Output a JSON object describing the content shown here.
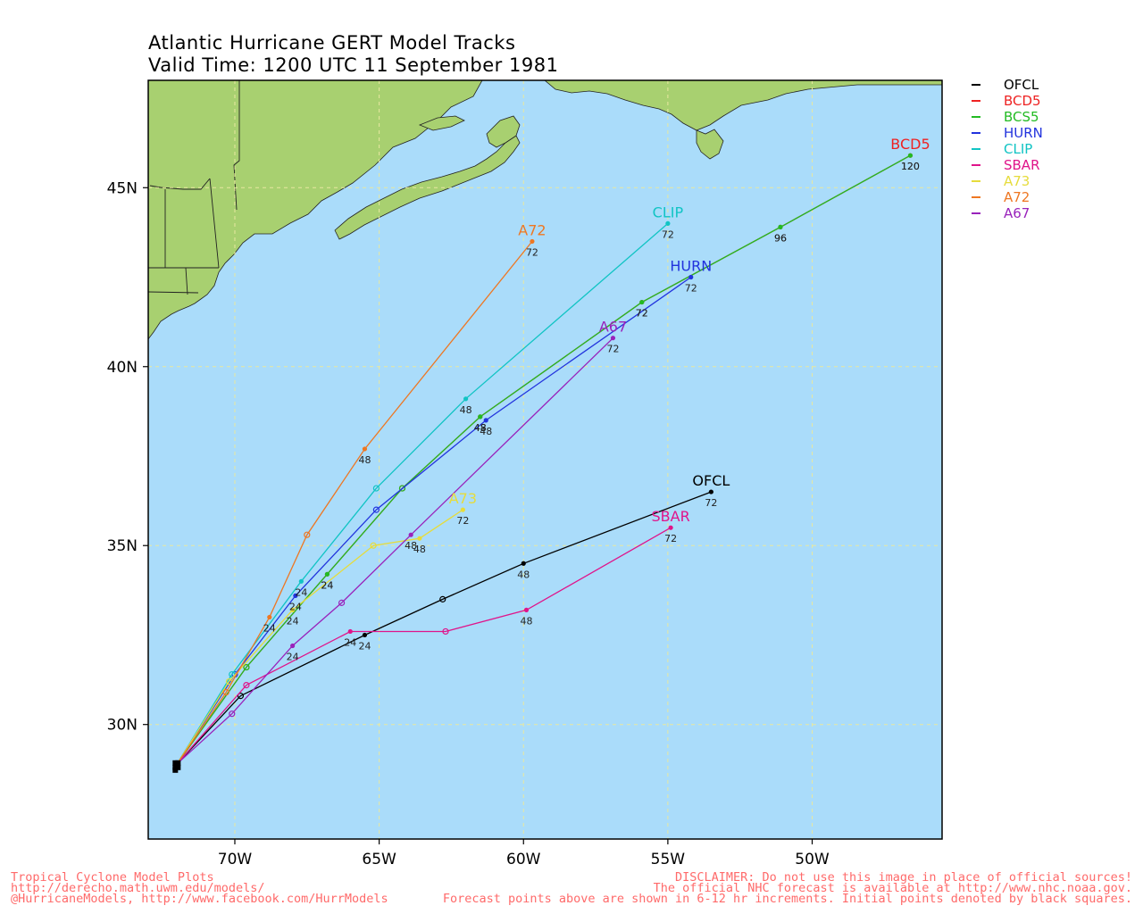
{
  "title": {
    "line1": "Atlantic Hurricane GERT Model Tracks",
    "line2": "Valid Time: 1200 UTC 11 September 1981"
  },
  "legend": [
    {
      "name": "OFCL",
      "color": "#000000"
    },
    {
      "name": "BCD5",
      "color": "#ee2222"
    },
    {
      "name": "BCS5",
      "color": "#22bb22"
    },
    {
      "name": "HURN",
      "color": "#2233dd"
    },
    {
      "name": "CLIP",
      "color": "#11c4c4"
    },
    {
      "name": "SBAR",
      "color": "#e0148a"
    },
    {
      "name": "A73",
      "color": "#e6dc3c"
    },
    {
      "name": "A72",
      "color": "#ee7722"
    },
    {
      "name": "A67",
      "color": "#9922bb"
    }
  ],
  "axes": {
    "lon_range": [
      -73.0,
      -45.5
    ],
    "lat_range": [
      26.8,
      48.0
    ],
    "x_ticks": [
      {
        "lon": -70,
        "label": "70W"
      },
      {
        "lon": -65,
        "label": "65W"
      },
      {
        "lon": -60,
        "label": "60W"
      },
      {
        "lon": -55,
        "label": "55W"
      },
      {
        "lon": -50,
        "label": "50W"
      }
    ],
    "y_ticks": [
      {
        "lat": 30,
        "label": "30N"
      },
      {
        "lat": 35,
        "label": "35N"
      },
      {
        "lat": 40,
        "label": "40N"
      },
      {
        "lat": 45,
        "label": "45N"
      }
    ],
    "grid": true,
    "ocean_color": "#aadcfa",
    "land_color": "#a8d070"
  },
  "initial_position": {
    "lon": -72.0,
    "lat": 28.9
  },
  "tracks": [
    {
      "name": "OFCL",
      "color": "#000000",
      "points": [
        {
          "lon": -72.0,
          "lat": 28.9
        },
        {
          "lon": -69.8,
          "lat": 30.8
        },
        {
          "lon": -65.5,
          "lat": 32.5,
          "hour": "24"
        },
        {
          "lon": -62.8,
          "lat": 33.5
        },
        {
          "lon": -60.0,
          "lat": 34.5,
          "hour": "48"
        },
        {
          "lon": -53.5,
          "lat": 36.5,
          "hour": "72"
        }
      ]
    },
    {
      "name": "BCD5",
      "color": "#ee2222",
      "points": [
        {
          "lon": -72.0,
          "lat": 28.9
        },
        {
          "lon": -69.6,
          "lat": 31.6
        },
        {
          "lon": -66.8,
          "lat": 34.2,
          "hour": "24"
        },
        {
          "lon": -64.2,
          "lat": 36.6
        },
        {
          "lon": -61.5,
          "lat": 38.6,
          "hour": "48"
        },
        {
          "lon": -55.9,
          "lat": 41.8,
          "hour": "72"
        },
        {
          "lon": -51.1,
          "lat": 43.9,
          "hour": "96"
        },
        {
          "lon": -46.6,
          "lat": 45.9,
          "hour": "120"
        }
      ]
    },
    {
      "name": "BCS5",
      "color": "#22bb22",
      "points": [
        {
          "lon": -72.0,
          "lat": 28.9
        },
        {
          "lon": -69.6,
          "lat": 31.6
        },
        {
          "lon": -66.8,
          "lat": 34.2,
          "hour": "24"
        },
        {
          "lon": -64.2,
          "lat": 36.6
        },
        {
          "lon": -61.5,
          "lat": 38.6,
          "hour": "48"
        },
        {
          "lon": -55.9,
          "lat": 41.8,
          "hour": "72"
        },
        {
          "lon": -51.1,
          "lat": 43.9,
          "hour": "96"
        },
        {
          "lon": -46.6,
          "lat": 45.9,
          "hour": "120"
        }
      ]
    },
    {
      "name": "HURN",
      "color": "#2233dd",
      "points": [
        {
          "lon": -72.0,
          "lat": 28.9
        },
        {
          "lon": -70.0,
          "lat": 31.4
        },
        {
          "lon": -67.9,
          "lat": 33.6,
          "hour": "24"
        },
        {
          "lon": -65.1,
          "lat": 36.0
        },
        {
          "lon": -61.3,
          "lat": 38.5,
          "hour": "48"
        },
        {
          "lon": -54.2,
          "lat": 42.5,
          "hour": "72"
        }
      ]
    },
    {
      "name": "CLIP",
      "color": "#11c4c4",
      "points": [
        {
          "lon": -72.0,
          "lat": 28.9
        },
        {
          "lon": -70.1,
          "lat": 31.4
        },
        {
          "lon": -67.7,
          "lat": 34.0,
          "hour": "24"
        },
        {
          "lon": -65.1,
          "lat": 36.6
        },
        {
          "lon": -62.0,
          "lat": 39.1,
          "hour": "48"
        },
        {
          "lon": -55.0,
          "lat": 44.0,
          "hour": "72"
        }
      ]
    },
    {
      "name": "SBAR",
      "color": "#e0148a",
      "points": [
        {
          "lon": -72.0,
          "lat": 28.9
        },
        {
          "lon": -69.6,
          "lat": 31.1
        },
        {
          "lon": -66.0,
          "lat": 32.6,
          "hour": "24"
        },
        {
          "lon": -62.7,
          "lat": 32.6
        },
        {
          "lon": -59.9,
          "lat": 33.2,
          "hour": "48"
        },
        {
          "lon": -54.9,
          "lat": 35.5,
          "hour": "72"
        }
      ]
    },
    {
      "name": "A73",
      "color": "#e6dc3c",
      "points": [
        {
          "lon": -72.0,
          "lat": 28.9
        },
        {
          "lon": -70.2,
          "lat": 31.2
        },
        {
          "lon": -68.0,
          "lat": 33.2,
          "hour": "24"
        },
        {
          "lon": -65.2,
          "lat": 35.0
        },
        {
          "lon": -63.6,
          "lat": 35.2,
          "hour": "48"
        },
        {
          "lon": -62.1,
          "lat": 36.0,
          "hour": "72"
        }
      ]
    },
    {
      "name": "A72",
      "color": "#ee7722",
      "points": [
        {
          "lon": -72.0,
          "lat": 28.9
        },
        {
          "lon": -70.3,
          "lat": 30.9
        },
        {
          "lon": -68.8,
          "lat": 33.0,
          "hour": "24"
        },
        {
          "lon": -67.5,
          "lat": 35.3
        },
        {
          "lon": -65.5,
          "lat": 37.7,
          "hour": "48"
        },
        {
          "lon": -59.7,
          "lat": 43.5,
          "hour": "72"
        }
      ]
    },
    {
      "name": "A67",
      "color": "#9922bb",
      "points": [
        {
          "lon": -72.0,
          "lat": 28.9
        },
        {
          "lon": -70.1,
          "lat": 30.3
        },
        {
          "lon": -68.0,
          "lat": 32.2,
          "hour": "24"
        },
        {
          "lon": -66.3,
          "lat": 33.4
        },
        {
          "lon": -63.9,
          "lat": 35.3,
          "hour": "48"
        },
        {
          "lon": -56.9,
          "lat": 40.8,
          "hour": "72"
        }
      ]
    }
  ],
  "track_labels": [
    {
      "name": "BCD5",
      "lon": -46.6,
      "lat": 45.9
    },
    {
      "name": "CLIP",
      "lon": -55.0,
      "lat": 44.0
    },
    {
      "name": "A72",
      "lon": -59.7,
      "lat": 43.5
    },
    {
      "name": "HURN",
      "lon": -54.2,
      "lat": 42.5
    },
    {
      "name": "A67",
      "lon": -56.9,
      "lat": 40.8
    },
    {
      "name": "A73",
      "lon": -62.1,
      "lat": 36.0
    },
    {
      "name": "OFCL",
      "lon": -53.5,
      "lat": 36.5
    },
    {
      "name": "SBAR",
      "lon": -54.9,
      "lat": 35.5
    }
  ],
  "footer": {
    "left1": "Tropical Cyclone Model Plots",
    "left2": "http://derecho.math.uwm.edu/models/",
    "left3": "@HurricaneModels, http://www.facebook.com/HurrModels",
    "right1": "DISCLAIMER: Do not use this image in place of official sources!",
    "right2": "The official NHC forecast is available at http://www.nhc.noaa.gov.",
    "right3": "Forecast points above are shown in 6-12 hr increments. Initial points denoted by black squares."
  }
}
